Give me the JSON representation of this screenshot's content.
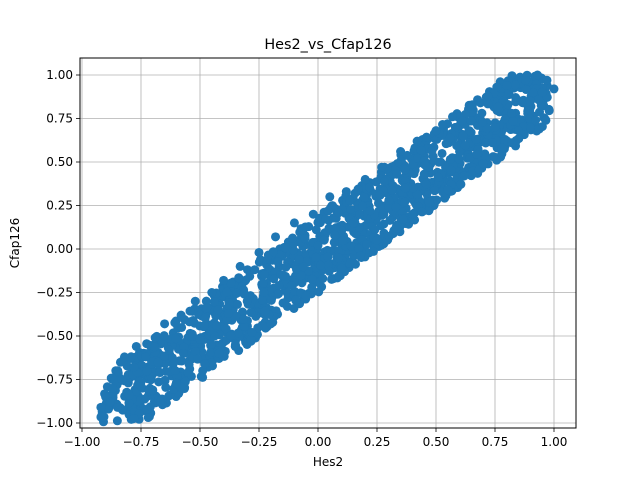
{
  "chart_data": {
    "type": "scatter",
    "title": "Hes2_vs_Cfap126",
    "xlabel": "Hes2",
    "ylabel": "Cfap126",
    "xlim": [
      -1.0,
      1.0
    ],
    "ylim": [
      -1.0,
      1.0
    ],
    "xticks": [
      -1.0,
      -0.75,
      -0.5,
      -0.25,
      0.0,
      0.25,
      0.5,
      0.75,
      1.0
    ],
    "xtick_labels": [
      "−1.00",
      "−0.75",
      "−0.50",
      "−0.25",
      "0.00",
      "0.25",
      "0.50",
      "0.75",
      "1.00"
    ],
    "yticks": [
      -1.0,
      -0.75,
      -0.5,
      -0.25,
      0.0,
      0.25,
      0.5,
      0.75,
      1.0
    ],
    "ytick_labels": [
      "−1.00",
      "−0.75",
      "−0.50",
      "−0.25",
      "0.00",
      "0.25",
      "0.50",
      "0.75",
      "1.00"
    ],
    "grid": true,
    "legend": "none",
    "series": [
      {
        "color": "#1f77b4",
        "points": [
          [
            -0.92,
            -0.91
          ],
          [
            -0.9,
            -0.85
          ],
          [
            -0.88,
            -0.88
          ],
          [
            -0.87,
            -0.8
          ],
          [
            -0.85,
            -0.91
          ],
          [
            -0.83,
            -0.75
          ],
          [
            -0.82,
            -0.62
          ],
          [
            -0.8,
            -0.84
          ],
          [
            -0.78,
            -0.68
          ],
          [
            -0.77,
            -0.56
          ],
          [
            -0.75,
            -0.79
          ],
          [
            -0.73,
            -0.62
          ],
          [
            -0.7,
            -0.81
          ],
          [
            -0.69,
            -0.51
          ],
          [
            -0.67,
            -0.71
          ],
          [
            -0.65,
            -0.43
          ],
          [
            -0.63,
            -0.58
          ],
          [
            -0.6,
            -0.77
          ],
          [
            -0.58,
            -0.38
          ],
          [
            -0.57,
            -0.6
          ],
          [
            -0.55,
            -0.71
          ],
          [
            -0.52,
            -0.3
          ],
          [
            -0.5,
            -0.52
          ],
          [
            -0.48,
            -0.66
          ],
          [
            -0.45,
            -0.25
          ],
          [
            -0.43,
            -0.44
          ],
          [
            -0.42,
            -0.6
          ],
          [
            -0.4,
            -0.18
          ],
          [
            -0.38,
            -0.37
          ],
          [
            -0.35,
            -0.55
          ],
          [
            -0.33,
            -0.1
          ],
          [
            -0.3,
            -0.3
          ],
          [
            -0.28,
            -0.48
          ],
          [
            -0.25,
            -0.02
          ],
          [
            -0.23,
            -0.25
          ],
          [
            -0.2,
            -0.43
          ],
          [
            -0.18,
            0.07
          ],
          [
            -0.15,
            -0.15
          ],
          [
            -0.13,
            -0.33
          ],
          [
            -0.1,
            0.15
          ],
          [
            -0.08,
            -0.06
          ],
          [
            -0.05,
            -0.27
          ],
          [
            -0.02,
            0.2
          ],
          [
            0.0,
            0.02
          ],
          [
            0.02,
            -0.17
          ],
          [
            0.05,
            0.3
          ],
          [
            0.07,
            0.08
          ],
          [
            0.1,
            -0.11
          ],
          [
            0.12,
            0.33
          ],
          [
            0.15,
            0.15
          ],
          [
            0.18,
            -0.04
          ],
          [
            0.2,
            0.4
          ],
          [
            0.22,
            0.22
          ],
          [
            0.25,
            0.05
          ],
          [
            0.27,
            0.47
          ],
          [
            0.3,
            0.28
          ],
          [
            0.33,
            0.12
          ],
          [
            0.35,
            0.56
          ],
          [
            0.37,
            0.35
          ],
          [
            0.4,
            0.2
          ],
          [
            0.42,
            0.62
          ],
          [
            0.45,
            0.43
          ],
          [
            0.47,
            0.27
          ],
          [
            0.5,
            0.68
          ],
          [
            0.52,
            0.5
          ],
          [
            0.55,
            0.34
          ],
          [
            0.57,
            0.76
          ],
          [
            0.6,
            0.56
          ],
          [
            0.62,
            0.42
          ],
          [
            0.65,
            0.82
          ],
          [
            0.67,
            0.63
          ],
          [
            0.7,
            0.49
          ],
          [
            0.72,
            0.88
          ],
          [
            0.75,
            0.7
          ],
          [
            0.78,
            0.58
          ],
          [
            0.8,
            0.94
          ],
          [
            0.82,
            0.78
          ],
          [
            0.85,
            0.68
          ],
          [
            0.88,
            0.97
          ],
          [
            0.9,
            0.85
          ],
          [
            0.93,
            1.0
          ],
          [
            0.95,
            0.9
          ],
          [
            1.0,
            0.92
          ]
        ]
      }
    ]
  }
}
